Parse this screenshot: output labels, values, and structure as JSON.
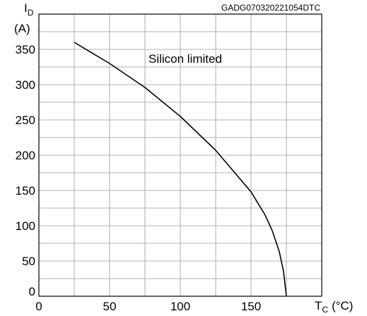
{
  "chart_data": {
    "type": "line",
    "code_label": "GADG070320221054DTC",
    "annotation": "Silicon limited",
    "ylabel_main": "I",
    "ylabel_sub": "D",
    "ylabel_unit": "(A)",
    "xlabel_main": "T",
    "xlabel_sub": "C",
    "xlabel_unit": "(°C)",
    "xlim": [
      0,
      200
    ],
    "ylim": [
      0,
      400
    ],
    "x_ticks": [
      0,
      50,
      100,
      150
    ],
    "y_ticks": [
      0,
      50,
      100,
      150,
      200,
      250,
      300,
      350
    ],
    "x_minor_step": 25,
    "y_minor_step": 25,
    "grid": true,
    "series": [
      {
        "x": [
          25,
          50,
          75,
          100,
          125,
          150,
          160,
          165,
          170,
          173,
          175
        ],
        "values": [
          360,
          330,
          296,
          255,
          207,
          148,
          115,
          93,
          63,
          35,
          0
        ]
      }
    ]
  }
}
